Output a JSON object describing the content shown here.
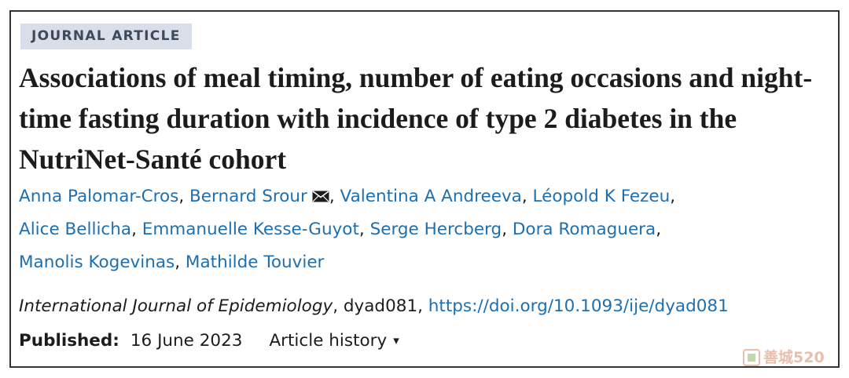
{
  "article_type": "JOURNAL ARTICLE",
  "title": "Associations of meal timing, number of eating occasions and night-time fasting duration with incidence of type 2 diabetes in the NutriNet-Santé cohort",
  "authors": [
    "Anna Palomar-Cros",
    "Bernard Srour",
    "Valentina A Andreeva",
    "Léopold K Fezeu",
    "Alice Bellicha",
    "Emmanuelle Kesse-Guyot",
    "Serge Hercberg",
    "Dora Romaguera",
    "Manolis Kogevinas",
    "Mathilde Touvier"
  ],
  "separator": ", ",
  "citation": {
    "journal": "International Journal of Epidemiology",
    "article_id": ", dyad081, ",
    "doi": "https://doi.org/10.1093/ije/dyad081"
  },
  "published": {
    "label": "Published:",
    "date": "16 June 2023"
  },
  "article_history": {
    "label": "Article history",
    "caret": "▾"
  },
  "watermark": {
    "text": "善城520"
  },
  "colors": {
    "link": "#1f6fae",
    "badge_bg": "#d9dee9",
    "text": "#1c1c1c"
  },
  "icons": {
    "corresponding_author": "envelope-icon",
    "history_toggle": "caret-down-icon",
    "watermark_logo": "watermark-logo-icon"
  }
}
